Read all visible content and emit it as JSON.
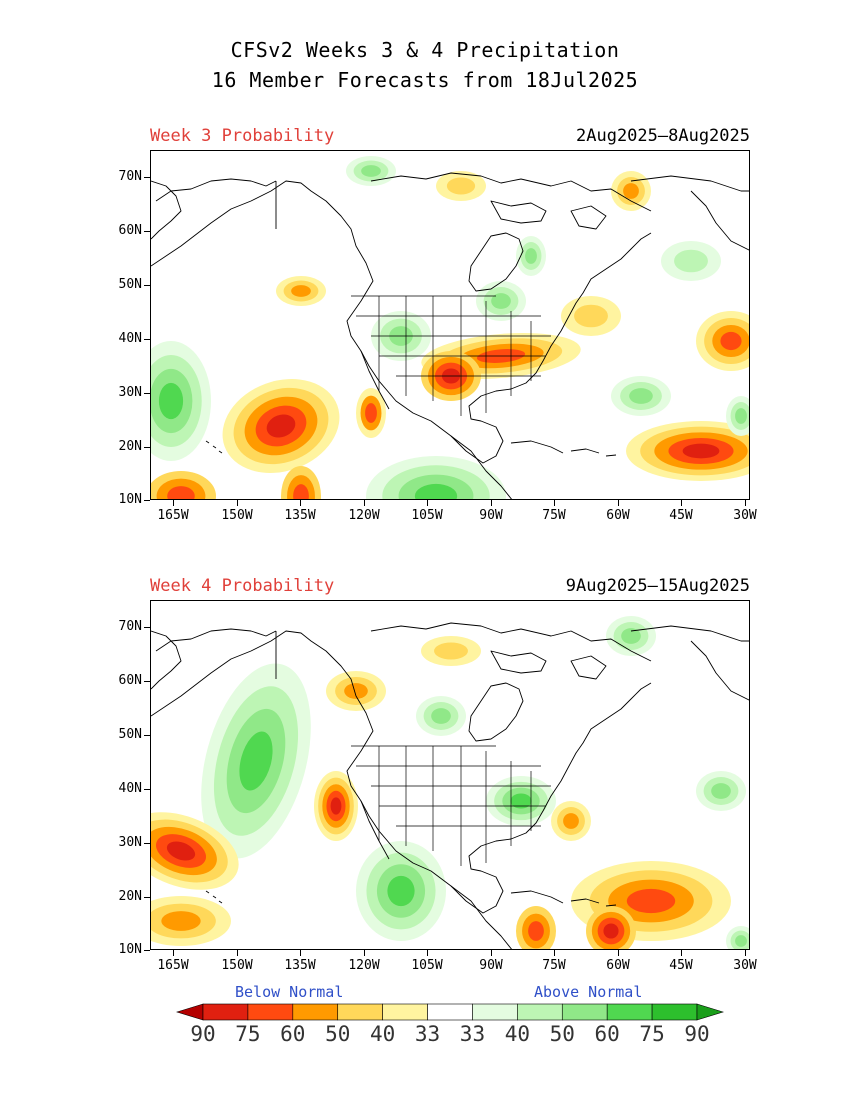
{
  "title": {
    "line1": "CFSv2 Weeks 3 & 4 Precipitation",
    "line2": "16 Member Forecasts from 18Jul2025"
  },
  "panels": [
    {
      "label": "Week 3 Probability",
      "dates": "2Aug2025—8Aug2025"
    },
    {
      "label": "Week 4 Probability",
      "dates": "9Aug2025—15Aug2025"
    }
  ],
  "axes": {
    "lat_labels": [
      "70N",
      "60N",
      "50N",
      "40N",
      "30N",
      "20N",
      "10N"
    ],
    "lon_labels": [
      "165W",
      "150W",
      "135W",
      "120W",
      "105W",
      "90W",
      "75W",
      "60W",
      "45W",
      "30W"
    ]
  },
  "legend": {
    "below_label": "Below Normal",
    "above_label": "Above Normal",
    "values": [
      "90",
      "75",
      "60",
      "50",
      "40",
      "33",
      "33",
      "40",
      "50",
      "60",
      "75",
      "90"
    ],
    "colors": [
      "#b40000",
      "#e02010",
      "#ff4a10",
      "#ff9a00",
      "#ffd85a",
      "#fff4a0",
      "#ffffff",
      "#e4fce0",
      "#bdf5b4",
      "#90e888",
      "#50d850",
      "#2dbf2d",
      "#1a9e1a"
    ]
  }
}
